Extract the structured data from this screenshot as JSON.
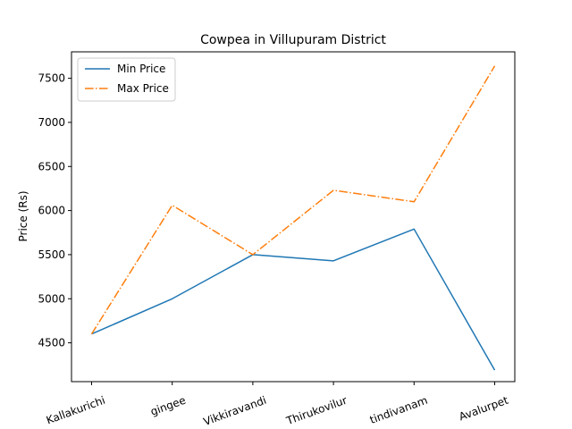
{
  "chart_data": {
    "type": "line",
    "title": "Cowpea in Villupuram District",
    "xlabel": "",
    "ylabel": "Price (Rs)",
    "categories": [
      "Kallakurichi",
      "gingee",
      "Vikkiravandi",
      "Thirukovilur",
      "tindivanam",
      "Avalurpet"
    ],
    "series": [
      {
        "name": "Min Price",
        "values": [
          4600,
          5000,
          5500,
          5430,
          5790,
          4190
        ],
        "color": "#1f77b4",
        "style": "solid"
      },
      {
        "name": "Max Price",
        "values": [
          4600,
          6060,
          5500,
          6230,
          6100,
          7640
        ],
        "color": "#ff7f0e",
        "style": "dashdot"
      }
    ],
    "ylim": [
      4060,
      7800
    ],
    "yticks": [
      4500,
      5000,
      5500,
      6000,
      6500,
      7000,
      7500
    ],
    "grid": false,
    "legend_position": "top-left"
  }
}
